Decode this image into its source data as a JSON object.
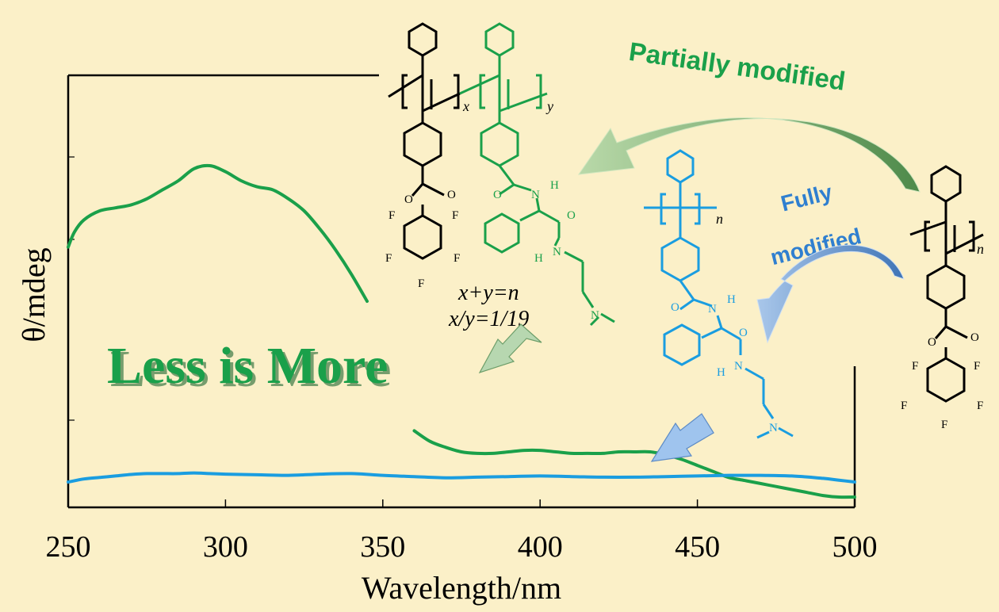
{
  "colors": {
    "background": "#fbf0c8",
    "partial": "#1aa04a",
    "full": "#1a9de0",
    "fully_text": "#2f7fd0",
    "black": "#000000"
  },
  "headline": "Less is More",
  "labels": {
    "partially_modified": "Partially modified",
    "fully_modified_line1": "Fully",
    "fully_modified_line2": "modified",
    "ratio_line1": "x+y=n",
    "ratio_line2": "x/y=1/19"
  },
  "structure_labels": {
    "x": "x",
    "y": "y",
    "n": "n",
    "F": "F",
    "O": "O",
    "N": "N",
    "H": "H"
  },
  "chart_data": {
    "type": "line",
    "xlabel": "Wavelength/nm",
    "ylabel": "θ/mdeg",
    "xlim": [
      250,
      500
    ],
    "x_ticks": [
      250,
      300,
      350,
      400,
      450,
      500
    ],
    "y_ticks_shown": false,
    "grid": false,
    "series": [
      {
        "color": "#1aa04a",
        "x": [
          250,
          252,
          255,
          260,
          265,
          270,
          275,
          280,
          285,
          290,
          295,
          300,
          305,
          310,
          315,
          320,
          325,
          330,
          335,
          340,
          345
        ],
        "y": [
          0.78,
          0.83,
          0.87,
          0.9,
          0.91,
          0.92,
          0.94,
          0.97,
          1.0,
          1.04,
          1.05,
          1.03,
          1.0,
          0.98,
          0.97,
          0.94,
          0.9,
          0.84,
          0.77,
          0.69,
          0.6
        ],
        "x_part2": [
          360,
          365,
          370,
          375,
          380,
          385,
          390,
          395,
          400,
          405,
          410,
          415,
          420,
          425,
          430,
          435,
          440,
          445,
          450,
          455,
          460,
          465,
          470,
          475,
          480,
          485,
          490,
          495,
          500
        ],
        "y_part2": [
          0.17,
          0.135,
          0.115,
          0.1,
          0.095,
          0.095,
          0.1,
          0.105,
          0.105,
          0.1,
          0.095,
          0.095,
          0.095,
          0.1,
          0.1,
          0.1,
          0.09,
          0.075,
          0.055,
          0.035,
          0.015,
          0.005,
          -0.005,
          -0.015,
          -0.025,
          -0.035,
          -0.045,
          -0.05,
          -0.05
        ]
      },
      {
        "color": "#1a9de0",
        "x": [
          250,
          255,
          260,
          265,
          270,
          275,
          280,
          285,
          290,
          295,
          300,
          310,
          320,
          330,
          340,
          350,
          360,
          370,
          380,
          390,
          400,
          410,
          420,
          430,
          440,
          450,
          460,
          470,
          480,
          490,
          495,
          500
        ],
        "y": [
          0.0,
          0.01,
          0.015,
          0.02,
          0.025,
          0.028,
          0.028,
          0.028,
          0.03,
          0.028,
          0.026,
          0.024,
          0.022,
          0.026,
          0.028,
          0.022,
          0.018,
          0.014,
          0.016,
          0.018,
          0.02,
          0.018,
          0.016,
          0.016,
          0.018,
          0.02,
          0.022,
          0.022,
          0.02,
          0.012,
          0.006,
          0.0
        ]
      }
    ]
  }
}
